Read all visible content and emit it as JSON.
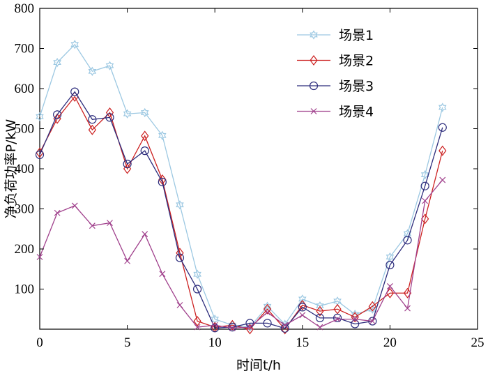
{
  "chart_data": {
    "type": "line",
    "xlabel": "时间t/h",
    "ylabel": "净负荷功率P/kW",
    "xlim": [
      0,
      25
    ],
    "ylim": [
      0,
      800
    ],
    "xticks": [
      0,
      5,
      10,
      15,
      20,
      25
    ],
    "yticks": [
      100,
      200,
      300,
      400,
      500,
      600,
      700,
      800
    ],
    "grid": false,
    "legend_position": "top-right",
    "x": [
      0,
      1,
      2,
      3,
      4,
      5,
      6,
      7,
      8,
      9,
      10,
      11,
      12,
      13,
      14,
      15,
      16,
      17,
      18,
      19,
      20,
      21,
      22,
      23,
      24
    ],
    "series": [
      {
        "name": "场景1",
        "color": "#9cc8e2",
        "marker": "star",
        "values": [
          530,
          665,
          710,
          643,
          657,
          537,
          540,
          483,
          310,
          137,
          25,
          10,
          5,
          57,
          12,
          75,
          58,
          70,
          37,
          50,
          180,
          238,
          385,
          553,
          null
        ]
      },
      {
        "name": "场景2",
        "color": "#cc2020",
        "marker": "diamond",
        "values": [
          440,
          525,
          580,
          497,
          540,
          400,
          482,
          373,
          190,
          20,
          5,
          10,
          0,
          50,
          0,
          60,
          45,
          50,
          30,
          57,
          90,
          90,
          275,
          445,
          null
        ]
      },
      {
        "name": "场景3",
        "color": "#2c2c7c",
        "marker": "circle",
        "values": [
          435,
          535,
          592,
          523,
          528,
          412,
          445,
          367,
          178,
          100,
          3,
          5,
          15,
          15,
          2,
          55,
          28,
          28,
          13,
          20,
          160,
          222,
          357,
          503,
          null
        ]
      },
      {
        "name": "场景4",
        "color": "#a0408c",
        "marker": "x",
        "values": [
          180,
          290,
          308,
          258,
          265,
          170,
          237,
          138,
          60,
          5,
          10,
          3,
          5,
          42,
          10,
          35,
          5,
          25,
          25,
          20,
          107,
          52,
          320,
          372,
          null
        ]
      }
    ]
  }
}
